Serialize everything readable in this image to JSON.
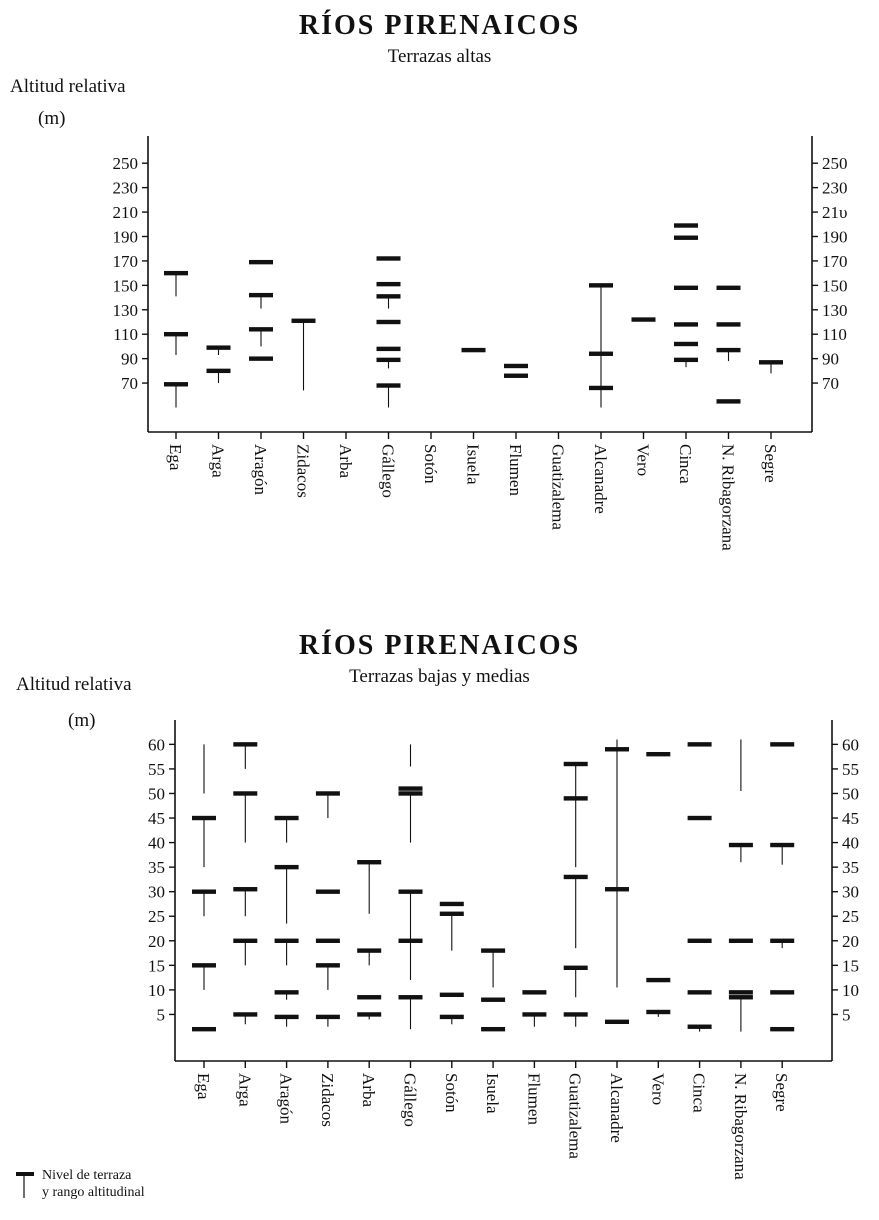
{
  "charts": {
    "top": {
      "title": "RÍOS PIRENAICOS",
      "subtitle": "Terrazas altas",
      "ylabel_line1": "Altitud relativa",
      "ylabel_line2": "(m)"
    },
    "bottom": {
      "title": "RÍOS PIRENAICOS",
      "subtitle": "Terrazas bajas y medias",
      "ylabel_line1": "Altitud relativa",
      "ylabel_line2": "(m)"
    }
  },
  "legend": {
    "line1": "Nivel de terraza",
    "line2": "y rango altitudinal"
  },
  "colors": {
    "ink": "#111111"
  },
  "chart_data": [
    {
      "type": "range-level",
      "title": "RÍOS PIRENAICOS",
      "subtitle": "Terrazas altas",
      "ylabel": "Altitud relativa (m)",
      "ylim": [
        50,
        260
      ],
      "yticks": [
        70,
        90,
        110,
        130,
        150,
        170,
        190,
        210,
        230,
        250
      ],
      "ytick_labels_right": [
        "70",
        "90",
        "110",
        "130",
        "150",
        "170",
        "190",
        "21υ",
        "230",
        "250"
      ],
      "categories": [
        "Ega",
        "Arga",
        "Aragón",
        "Zidacos",
        "Arba",
        "Gállego",
        "Sotón",
        "Isuela",
        "Flumen",
        "Guatizalema",
        "Alcanadre",
        "Vero",
        "Cinca",
        "N. Ribagorzana",
        "Segre"
      ],
      "series": [
        {
          "category": "Ega",
          "levels": [
            160,
            110,
            69
          ],
          "ranges": [
            [
              141,
              160
            ],
            [
              93,
              110
            ],
            [
              50,
              69
            ]
          ]
        },
        {
          "category": "Arga",
          "levels": [
            99,
            80
          ],
          "ranges": [
            [
              93,
              99
            ],
            [
              70,
              80
            ]
          ]
        },
        {
          "category": "Aragón",
          "levels": [
            169,
            142,
            114,
            90
          ],
          "ranges": [
            [
              131,
              142
            ],
            [
              100,
              114
            ]
          ]
        },
        {
          "category": "Zidacos",
          "levels": [
            121
          ],
          "ranges": [
            [
              64,
              121
            ]
          ]
        },
        {
          "category": "Arba",
          "levels": [],
          "ranges": []
        },
        {
          "category": "Gállego",
          "levels": [
            172,
            151,
            141,
            120,
            98,
            89,
            68
          ],
          "ranges": [
            [
              131,
              141
            ],
            [
              82,
              89
            ],
            [
              50,
              68
            ]
          ]
        },
        {
          "category": "Sotón",
          "levels": [],
          "ranges": []
        },
        {
          "category": "Isuela",
          "levels": [
            97
          ],
          "ranges": []
        },
        {
          "category": "Flumen",
          "levels": [
            84,
            76
          ],
          "ranges": []
        },
        {
          "category": "Guatizalema",
          "levels": [],
          "ranges": []
        },
        {
          "category": "Alcanadre",
          "levels": [
            150,
            94,
            66
          ],
          "ranges": [
            [
              94,
              150
            ],
            [
              66,
              94
            ],
            [
              50,
              66
            ]
          ]
        },
        {
          "category": "Vero",
          "levels": [
            122
          ],
          "ranges": []
        },
        {
          "category": "Cinca",
          "levels": [
            199,
            189,
            148,
            118,
            102,
            89
          ],
          "ranges": [
            [
              83,
              89
            ]
          ]
        },
        {
          "category": "N. Ribagorzana",
          "levels": [
            148,
            118,
            97,
            55
          ],
          "ranges": [
            [
              88,
              97
            ]
          ]
        },
        {
          "category": "Segre",
          "levels": [
            87
          ],
          "ranges": [
            [
              78,
              87
            ]
          ]
        }
      ],
      "grid": false
    },
    {
      "type": "range-level",
      "title": "RÍOS PIRENAICOS",
      "subtitle": "Terrazas bajas y medias",
      "ylabel": "Altitud relativa (m)",
      "ylim": [
        0,
        61.5
      ],
      "yticks": [
        5,
        10,
        15,
        20,
        25,
        30,
        35,
        40,
        45,
        50,
        55,
        60
      ],
      "categories": [
        "Ega",
        "Arga",
        "Aragón",
        "Zidacos",
        "Arba",
        "Gállego",
        "Sotón",
        "Isuela",
        "Flumen",
        "Guatizalema",
        "Alcanadre",
        "Vero",
        "Cinca",
        "N. Ribagorzana",
        "Segre"
      ],
      "series": [
        {
          "category": "Ega",
          "levels": [
            45,
            30,
            15,
            2
          ],
          "ranges": [
            [
              50,
              60
            ],
            [
              35,
              45
            ],
            [
              25,
              30
            ],
            [
              10,
              15
            ]
          ]
        },
        {
          "category": "Arga",
          "levels": [
            60,
            50,
            30.5,
            20,
            5
          ],
          "ranges": [
            [
              55,
              60
            ],
            [
              40,
              50
            ],
            [
              25,
              30.5
            ],
            [
              15,
              20
            ],
            [
              3,
              5
            ]
          ]
        },
        {
          "category": "Aragón",
          "levels": [
            45,
            35,
            20,
            9.5,
            4.5
          ],
          "ranges": [
            [
              40,
              45
            ],
            [
              23.5,
              35
            ],
            [
              15,
              20
            ],
            [
              8,
              9.5
            ],
            [
              2.5,
              4.5
            ]
          ]
        },
        {
          "category": "Zidacos",
          "levels": [
            50,
            30,
            20,
            15,
            4.5
          ],
          "ranges": [
            [
              45,
              50
            ],
            [
              10,
              15
            ],
            [
              2.5,
              4.5
            ]
          ]
        },
        {
          "category": "Arba",
          "levels": [
            36,
            18,
            8.5,
            5
          ],
          "ranges": [
            [
              25.5,
              36
            ],
            [
              15,
              18
            ],
            [
              4,
              5
            ]
          ]
        },
        {
          "category": "Gállego",
          "levels": [
            51,
            50,
            30,
            20,
            8.5
          ],
          "ranges": [
            [
              55.5,
              60
            ],
            [
              40,
              50
            ],
            [
              12,
              30
            ],
            [
              2,
              8.5
            ]
          ]
        },
        {
          "category": "Sotón",
          "levels": [
            27.5,
            25.5,
            9,
            4.5
          ],
          "ranges": [
            [
              18,
              25.5
            ],
            [
              3,
              4.5
            ]
          ]
        },
        {
          "category": "Isuela",
          "levels": [
            18,
            8,
            2
          ],
          "ranges": [
            [
              10.5,
              18
            ]
          ]
        },
        {
          "category": "Flumen",
          "levels": [
            9.5,
            5
          ],
          "ranges": [
            [
              2.5,
              5
            ]
          ]
        },
        {
          "category": "Guatizalema",
          "levels": [
            56,
            49,
            33,
            14.5,
            5
          ],
          "ranges": [
            [
              49,
              56
            ],
            [
              35,
              49
            ],
            [
              18.5,
              33
            ],
            [
              8.5,
              14.5
            ],
            [
              2.5,
              5
            ]
          ]
        },
        {
          "category": "Alcanadre",
          "levels": [
            59,
            30.5,
            3.5
          ],
          "ranges": [
            [
              30.5,
              61
            ],
            [
              10.5,
              30.5
            ]
          ]
        },
        {
          "category": "Vero",
          "levels": [
            58,
            12,
            5.5
          ],
          "ranges": [
            [
              4.5,
              5.5
            ]
          ]
        },
        {
          "category": "Cinca",
          "levels": [
            60,
            45,
            20,
            9.5,
            2.5
          ],
          "ranges": [
            [
              1.5,
              2.5
            ]
          ]
        },
        {
          "category": "N. Ribagorzana",
          "levels": [
            39.5,
            20,
            9.5,
            8.5
          ],
          "ranges": [
            [
              50.5,
              61
            ],
            [
              36,
              39.5
            ],
            [
              1.5,
              8.5
            ]
          ]
        },
        {
          "category": "Segre",
          "levels": [
            60,
            39.5,
            20,
            9.5,
            2
          ],
          "ranges": [
            [
              35.5,
              39.5
            ],
            [
              18.5,
              20
            ]
          ]
        }
      ],
      "grid": false
    }
  ]
}
